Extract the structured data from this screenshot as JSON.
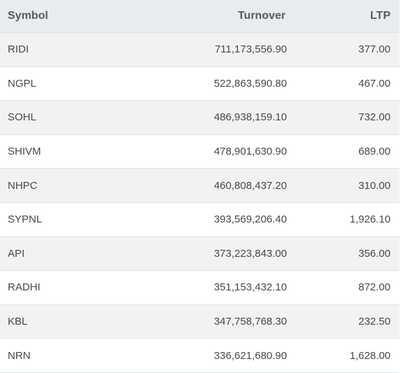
{
  "table": {
    "headers": {
      "symbol": "Symbol",
      "turnover": "Turnover",
      "ltp": "LTP"
    },
    "rows": [
      {
        "symbol": "RIDI",
        "turnover": "711,173,556.90",
        "ltp": "377.00"
      },
      {
        "symbol": "NGPL",
        "turnover": "522,863,590.80",
        "ltp": "467.00"
      },
      {
        "symbol": "SOHL",
        "turnover": "486,938,159.10",
        "ltp": "732.00"
      },
      {
        "symbol": "SHIVM",
        "turnover": "478,901,630.90",
        "ltp": "689.00"
      },
      {
        "symbol": "NHPC",
        "turnover": "460,808,437.20",
        "ltp": "310.00"
      },
      {
        "symbol": "SYPNL",
        "turnover": "393,569,206.40",
        "ltp": "1,926.10"
      },
      {
        "symbol": "API",
        "turnover": "373,223,843.00",
        "ltp": "356.00"
      },
      {
        "symbol": "RADHI",
        "turnover": "351,153,432.10",
        "ltp": "872.00"
      },
      {
        "symbol": "KBL",
        "turnover": "347,758,768.30",
        "ltp": "232.50"
      },
      {
        "symbol": "NRN",
        "turnover": "336,621,680.90",
        "ltp": "1,628.00"
      }
    ]
  }
}
